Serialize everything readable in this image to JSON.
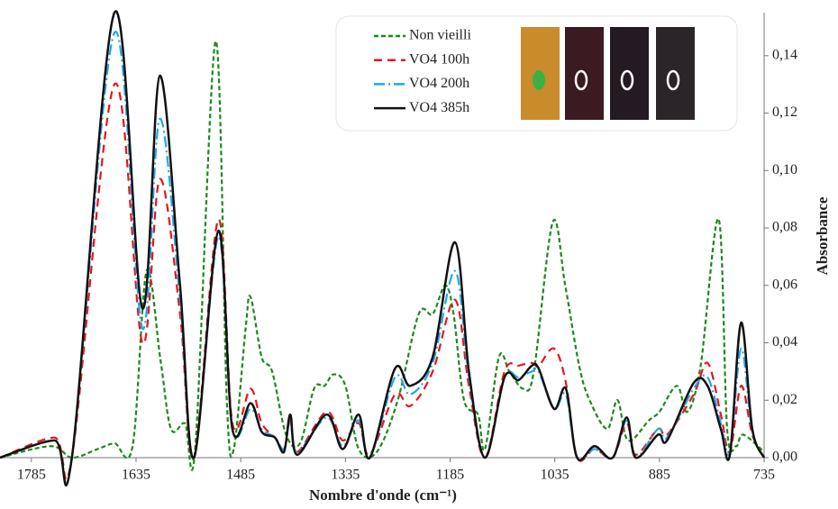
{
  "chart_data": {
    "type": "line",
    "x_label": "Nombre d'onde (cm⁻¹)",
    "y_label": "Absorbance",
    "xlim": [
      1830,
      735
    ],
    "xticks": [
      1785,
      1635,
      1485,
      1335,
      1185,
      1035,
      885,
      735
    ],
    "ylim": [
      0,
      0.155
    ],
    "yticks": [
      {
        "value": 0,
        "label": "0,00"
      },
      {
        "value": 0.02,
        "label": "0,02"
      },
      {
        "value": 0.04,
        "label": "0,04"
      },
      {
        "value": 0.06,
        "label": "0,06"
      },
      {
        "value": 0.08,
        "label": "0,08"
      },
      {
        "value": 0.1,
        "label": "0,10"
      },
      {
        "value": 0.12,
        "label": "0,12"
      },
      {
        "value": 0.14,
        "label": "0,14"
      }
    ],
    "series": [
      {
        "name": "Non vieilli",
        "color": "#1a8a1a",
        "dash": "5 3",
        "x": [
          1830,
          1757,
          1727,
          1690,
          1666,
          1640,
          1620,
          1600,
          1585,
          1565,
          1550,
          1521,
          1505,
          1495,
          1478,
          1471,
          1455,
          1440,
          1420,
          1400,
          1380,
          1365,
          1352,
          1335,
          1316,
          1290,
          1260,
          1230,
          1210,
          1192,
          1180,
          1165,
          1145,
          1135,
          1115,
          1100,
          1080,
          1065,
          1038,
          1020,
          1000,
          985,
          960,
          945,
          930,
          900,
          885,
          860,
          845,
          826,
          800,
          788,
          775,
          765,
          735
        ],
        "values": [
          0,
          0.004,
          0,
          0.003,
          0.005,
          0.004,
          0.065,
          0.034,
          0.01,
          0.012,
          0.004,
          0.145,
          0.02,
          0.003,
          0.045,
          0.056,
          0.035,
          0.03,
          0.008,
          0.005,
          0.024,
          0.025,
          0.029,
          0.025,
          0.003,
          0.002,
          0.02,
          0.05,
          0.05,
          0.06,
          0.05,
          0.02,
          0.015,
          0.003,
          0.035,
          0.03,
          0.024,
          0.03,
          0.082,
          0.06,
          0.032,
          0.02,
          0.01,
          0.02,
          0.006,
          0.013,
          0.016,
          0.025,
          0.016,
          0.032,
          0.083,
          0.01,
          0.004,
          0.008,
          0.002
        ]
      },
      {
        "name": "VO4 100h",
        "color": "#e8141c",
        "dash": "9 6",
        "x": [
          1830,
          1752,
          1727,
          1666,
          1626,
          1601,
          1572,
          1552,
          1517,
          1497,
          1471,
          1455,
          1436,
          1423,
          1414,
          1404,
          1362,
          1339,
          1316,
          1300,
          1264,
          1242,
          1210,
          1178,
          1158,
          1135,
          1107,
          1087,
          1068,
          1058,
          1036,
          1019,
          1003,
          978,
          952,
          932,
          919,
          887,
          874,
          836,
          816,
          797,
          784,
          768,
          752,
          735
        ],
        "values": [
          0,
          0.007,
          0,
          0.13,
          0.04,
          0.097,
          0.05,
          0,
          0.083,
          0.012,
          0.024,
          0.012,
          0.007,
          0.003,
          0.013,
          0.002,
          0.016,
          0.006,
          0.012,
          0.001,
          0.022,
          0.018,
          0.03,
          0.055,
          0.025,
          0,
          0.03,
          0.032,
          0.033,
          0.032,
          0.038,
          0.026,
          0,
          0.003,
          0,
          0.012,
          0.001,
          0.01,
          0.008,
          0.022,
          0.033,
          0.015,
          0.002,
          0.025,
          0.008,
          0
        ]
      },
      {
        "name": "VO4 200h",
        "color": "#1ea8e8",
        "dash": "12 4 2 4",
        "x": [
          1830,
          1752,
          1727,
          1666,
          1626,
          1601,
          1572,
          1552,
          1517,
          1497,
          1471,
          1455,
          1436,
          1423,
          1414,
          1404,
          1362,
          1339,
          1316,
          1300,
          1264,
          1242,
          1210,
          1178,
          1158,
          1135,
          1107,
          1087,
          1068,
          1058,
          1036,
          1019,
          1003,
          978,
          952,
          932,
          919,
          887,
          874,
          836,
          816,
          797,
          784,
          768,
          752,
          735
        ],
        "values": [
          0,
          0.006,
          0,
          0.148,
          0.045,
          0.118,
          0.055,
          0,
          0.077,
          0.01,
          0.017,
          0.01,
          0.007,
          0.003,
          0.013,
          0.002,
          0.014,
          0.004,
          0.013,
          0,
          0.028,
          0.022,
          0.033,
          0.065,
          0.028,
          0,
          0.028,
          0.028,
          0.03,
          0.03,
          0.017,
          0.022,
          0,
          0.003,
          0,
          0.013,
          0,
          0.01,
          0.007,
          0.024,
          0.028,
          0.012,
          0.002,
          0.038,
          0.009,
          0
        ]
      },
      {
        "name": "VO4 385h",
        "color": "#111111",
        "dash": "none",
        "x": [
          1830,
          1752,
          1727,
          1666,
          1626,
          1601,
          1572,
          1552,
          1517,
          1497,
          1471,
          1455,
          1436,
          1423,
          1414,
          1404,
          1362,
          1339,
          1316,
          1300,
          1264,
          1242,
          1210,
          1178,
          1158,
          1135,
          1107,
          1087,
          1068,
          1058,
          1036,
          1019,
          1003,
          978,
          952,
          932,
          919,
          887,
          874,
          836,
          816,
          797,
          784,
          768,
          752,
          735
        ],
        "values": [
          0,
          0.006,
          0,
          0.155,
          0.052,
          0.133,
          0.06,
          0,
          0.079,
          0.01,
          0.019,
          0.009,
          0.007,
          0.002,
          0.015,
          0.001,
          0.015,
          0.003,
          0.015,
          0,
          0.031,
          0.025,
          0.035,
          0.075,
          0.03,
          0,
          0.028,
          0.027,
          0.032,
          0.031,
          0.017,
          0.024,
          0,
          0.004,
          0,
          0.014,
          0,
          0.008,
          0.006,
          0.026,
          0.025,
          0.01,
          0.001,
          0.047,
          0.01,
          0
        ]
      }
    ]
  }
}
